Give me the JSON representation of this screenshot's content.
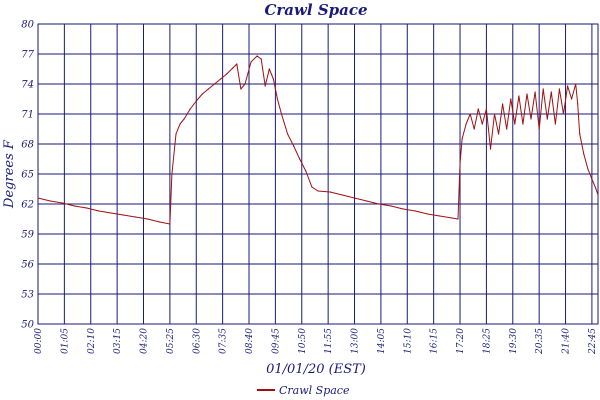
{
  "chart_data": {
    "type": "line",
    "title": "Crawl Space",
    "xlabel": "01/01/20 (EST)",
    "ylabel": "Degrees F",
    "ylim": [
      50,
      80
    ],
    "yticks": [
      "50",
      "53",
      "56",
      "59",
      "62",
      "65",
      "68",
      "71",
      "74",
      "77",
      "80"
    ],
    "xlim": [
      "00:00",
      "23:00"
    ],
    "xticks": [
      "00:00",
      "01:05",
      "02:10",
      "03:15",
      "04:20",
      "05:25",
      "06:30",
      "07:35",
      "08:40",
      "09:45",
      "10:50",
      "11:55",
      "13:00",
      "14:05",
      "15:10",
      "16:15",
      "17:20",
      "18:25",
      "19:30",
      "20:35",
      "21:40",
      "22:45"
    ],
    "grid": true,
    "legend_position": "bottom-center",
    "colors": {
      "series": "#a01010",
      "grid": "#1a1a7a",
      "text": "#1a1a7a"
    },
    "series": [
      {
        "name": "Crawl Space",
        "points": [
          [
            "00:00",
            62.6
          ],
          [
            "00:30",
            62.3
          ],
          [
            "01:00",
            62.1
          ],
          [
            "01:30",
            61.8
          ],
          [
            "02:00",
            61.6
          ],
          [
            "02:30",
            61.3
          ],
          [
            "03:00",
            61.1
          ],
          [
            "03:30",
            60.9
          ],
          [
            "04:00",
            60.7
          ],
          [
            "04:30",
            60.5
          ],
          [
            "05:00",
            60.2
          ],
          [
            "05:25",
            60.0
          ],
          [
            "05:30",
            65.0
          ],
          [
            "05:40",
            69.0
          ],
          [
            "05:50",
            70.0
          ],
          [
            "06:00",
            70.5
          ],
          [
            "06:15",
            71.5
          ],
          [
            "06:30",
            72.3
          ],
          [
            "06:45",
            73.0
          ],
          [
            "07:00",
            73.5
          ],
          [
            "07:15",
            74.0
          ],
          [
            "07:30",
            74.5
          ],
          [
            "07:45",
            75.0
          ],
          [
            "08:00",
            75.6
          ],
          [
            "08:10",
            76.0
          ],
          [
            "08:20",
            73.5
          ],
          [
            "08:30",
            74.0
          ],
          [
            "08:45",
            76.2
          ],
          [
            "09:00",
            76.8
          ],
          [
            "09:10",
            76.5
          ],
          [
            "09:20",
            73.8
          ],
          [
            "09:30",
            75.5
          ],
          [
            "09:40",
            74.5
          ],
          [
            "09:50",
            72.5
          ],
          [
            "10:00",
            71.0
          ],
          [
            "10:15",
            69.0
          ],
          [
            "10:30",
            67.8
          ],
          [
            "10:45",
            66.5
          ],
          [
            "11:00",
            65.3
          ],
          [
            "11:15",
            63.7
          ],
          [
            "11:30",
            63.3
          ],
          [
            "12:00",
            63.2
          ],
          [
            "12:30",
            62.9
          ],
          [
            "13:00",
            62.6
          ],
          [
            "13:30",
            62.3
          ],
          [
            "14:00",
            62.0
          ],
          [
            "14:30",
            61.8
          ],
          [
            "15:00",
            61.5
          ],
          [
            "15:30",
            61.3
          ],
          [
            "16:00",
            61.0
          ],
          [
            "16:30",
            60.8
          ],
          [
            "17:00",
            60.6
          ],
          [
            "17:15",
            60.5
          ],
          [
            "17:20",
            66.0
          ],
          [
            "17:25",
            68.5
          ],
          [
            "17:35",
            70.0
          ],
          [
            "17:45",
            71.0
          ],
          [
            "17:55",
            69.5
          ],
          [
            "18:05",
            71.5
          ],
          [
            "18:15",
            70.0
          ],
          [
            "18:25",
            71.5
          ],
          [
            "18:35",
            67.5
          ],
          [
            "18:45",
            71.0
          ],
          [
            "18:55",
            69.0
          ],
          [
            "19:05",
            72.0
          ],
          [
            "19:15",
            69.5
          ],
          [
            "19:25",
            72.5
          ],
          [
            "19:35",
            70.0
          ],
          [
            "19:45",
            72.8
          ],
          [
            "19:55",
            70.0
          ],
          [
            "20:05",
            73.0
          ],
          [
            "20:15",
            70.5
          ],
          [
            "20:25",
            73.2
          ],
          [
            "20:35",
            69.5
          ],
          [
            "20:45",
            73.5
          ],
          [
            "20:55",
            70.5
          ],
          [
            "21:05",
            73.2
          ],
          [
            "21:15",
            70.0
          ],
          [
            "21:25",
            73.5
          ],
          [
            "21:35",
            71.0
          ],
          [
            "21:45",
            73.8
          ],
          [
            "21:55",
            72.5
          ],
          [
            "22:05",
            74.0
          ],
          [
            "22:10",
            72.0
          ],
          [
            "22:15",
            69.0
          ],
          [
            "22:25",
            67.0
          ],
          [
            "22:35",
            65.5
          ],
          [
            "22:45",
            64.5
          ],
          [
            "22:55",
            63.5
          ],
          [
            "23:00",
            62.9
          ]
        ]
      }
    ]
  }
}
